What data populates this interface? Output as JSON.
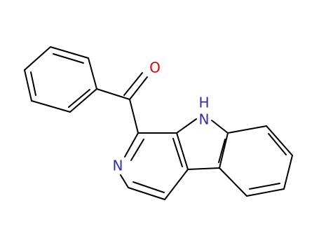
{
  "atoms": {
    "oxygen": "O",
    "pyridine_nitrogen": "N",
    "indole_nitrogen": "N",
    "indole_hydrogen": "H"
  }
}
